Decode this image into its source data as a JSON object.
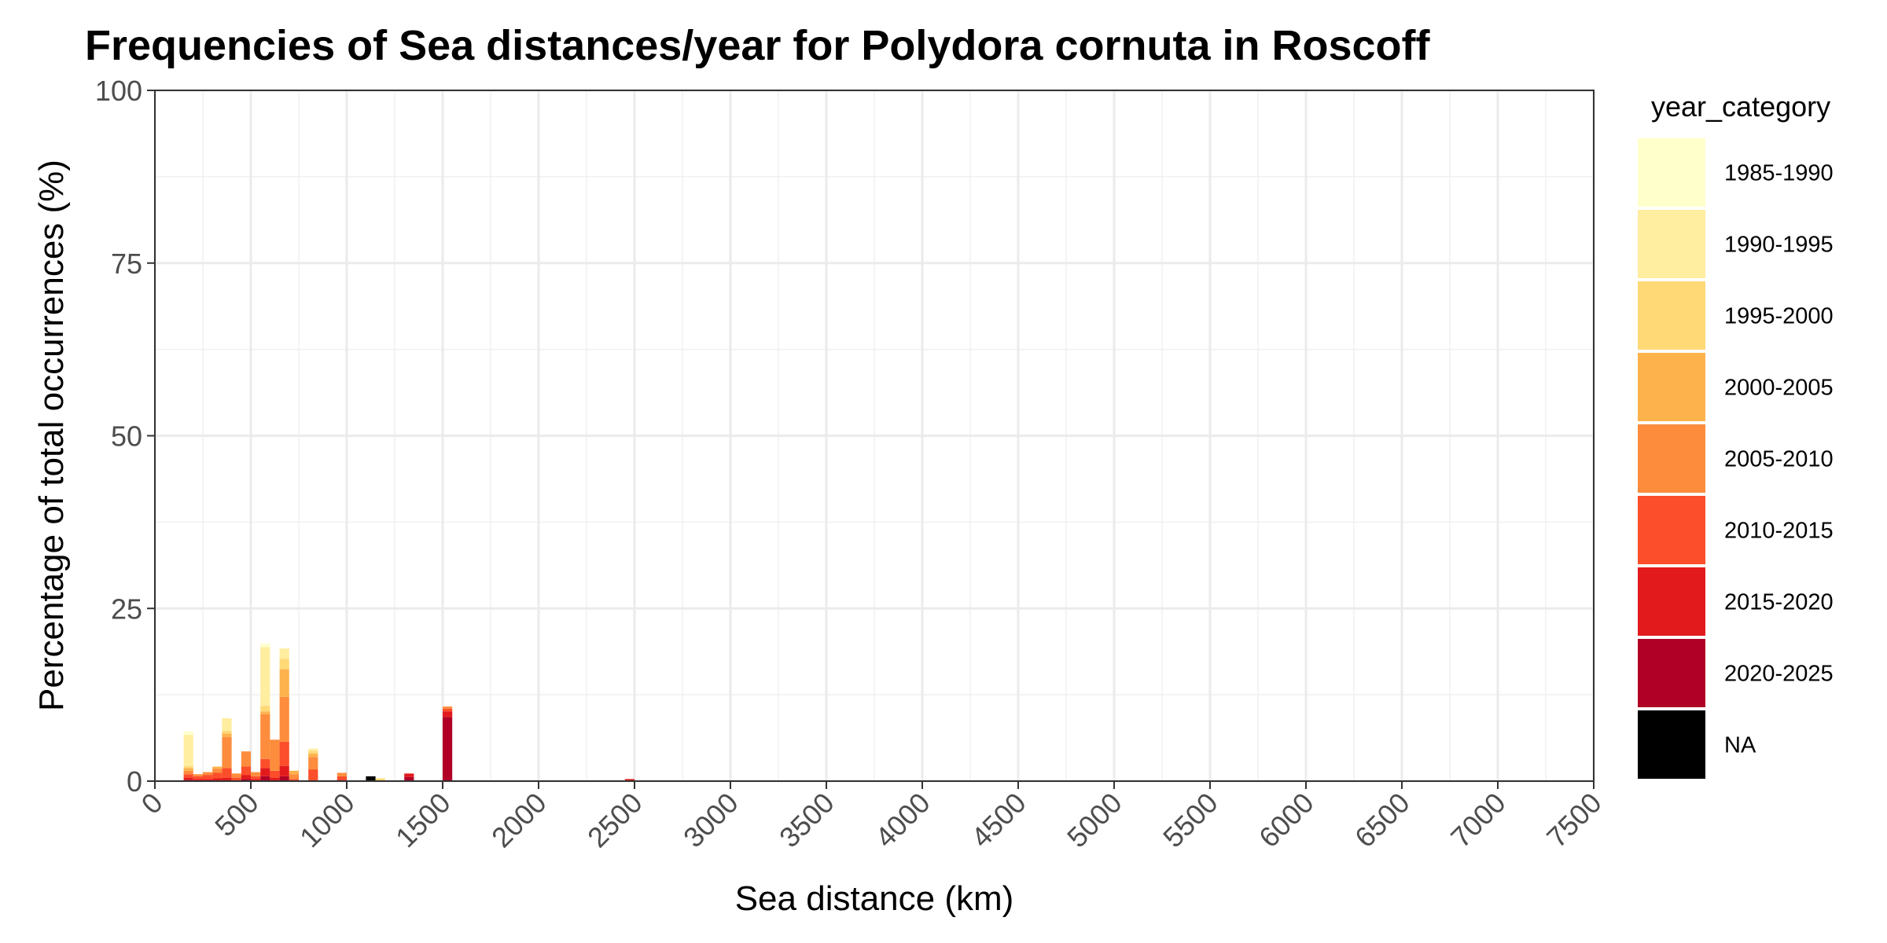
{
  "chart_data": {
    "type": "bar",
    "stacked": true,
    "title": "Frequencies of Sea distances/year for Polydora cornuta in Roscoff",
    "xlabel": "Sea distance (km)",
    "ylabel": "Percentage of total occurrences (%)",
    "xlim": [
      0,
      7500
    ],
    "ylim": [
      0,
      100
    ],
    "x_ticks": [
      "0",
      "500",
      "1000",
      "1500",
      "2000",
      "2500",
      "3000",
      "3500",
      "4000",
      "4500",
      "5000",
      "5500",
      "6000",
      "6500",
      "7000",
      "7500"
    ],
    "y_ticks": [
      "0",
      "25",
      "50",
      "75",
      "100"
    ],
    "grid": true,
    "bin_width": 50,
    "legend": {
      "title": "year_category",
      "position": "right",
      "entries": [
        "1985-1990",
        "1990-1995",
        "1995-2000",
        "2000-2005",
        "2005-2010",
        "2010-2015",
        "2015-2020",
        "2020-2025",
        "NA"
      ]
    },
    "colors": {
      "1985-1990": "#FFFFCC",
      "1990-1995": "#FFEDA0",
      "1995-2000": "#FED976",
      "2000-2005": "#FEB24C",
      "2005-2010": "#FD8D3C",
      "2010-2015": "#FC4E2A",
      "2015-2020": "#E31A1C",
      "2020-2025": "#B10026",
      "NA": "#000000"
    },
    "series_order_bottom_to_top": [
      "NA",
      "2020-2025",
      "2015-2020",
      "2010-2015",
      "2005-2010",
      "2000-2005",
      "1995-2000",
      "1990-1995",
      "1985-1990"
    ],
    "bins": [
      {
        "x": 175,
        "values": {
          "1985-1990": 0.5,
          "1990-1995": 4.5,
          "1995-2000": 0.3,
          "2000-2005": 0.4,
          "2005-2010": 0.5,
          "2010-2015": 0.5,
          "2015-2020": 0.3,
          "2020-2025": 0.2
        }
      },
      {
        "x": 225,
        "values": {
          "2005-2010": 0.3,
          "2010-2015": 0.4,
          "2015-2020": 0.3
        }
      },
      {
        "x": 275,
        "values": {
          "2005-2010": 0.4,
          "2010-2015": 0.6,
          "2015-2020": 0.3
        }
      },
      {
        "x": 325,
        "values": {
          "2000-2005": 0.3,
          "2005-2010": 0.6,
          "2010-2015": 0.8,
          "2015-2020": 0.4
        }
      },
      {
        "x": 375,
        "values": {
          "1990-1995": 1.8,
          "1995-2000": 0.4,
          "2000-2005": 0.5,
          "2005-2010": 4.5,
          "2010-2015": 1.4,
          "2015-2020": 0.5
        }
      },
      {
        "x": 425,
        "values": {
          "2005-2010": 0.6,
          "2010-2015": 0.5
        }
      },
      {
        "x": 475,
        "values": {
          "2005-2010": 2.2,
          "2010-2015": 1.2,
          "2015-2020": 0.6,
          "2020-2025": 0.3
        }
      },
      {
        "x": 525,
        "values": {
          "2005-2010": 0.6,
          "2010-2015": 0.4,
          "2015-2020": 0.3
        }
      },
      {
        "x": 575,
        "values": {
          "1985-1990": 0.5,
          "1990-1995": 8.5,
          "1995-2000": 0.8,
          "2000-2005": 0.4,
          "2005-2010": 6.5,
          "2010-2015": 1.3,
          "2015-2020": 1.2,
          "2020-2025": 0.7
        }
      },
      {
        "x": 625,
        "values": {
          "2005-2010": 4.5,
          "2010-2015": 1.0,
          "2015-2020": 0.5
        }
      },
      {
        "x": 675,
        "values": {
          "1990-1995": 1.5,
          "1995-2000": 1.5,
          "2000-2005": 4.0,
          "2005-2010": 6.5,
          "2010-2015": 3.5,
          "2015-2020": 1.5,
          "2020-2025": 0.7
        }
      },
      {
        "x": 725,
        "values": {
          "2000-2005": 0.5,
          "2005-2010": 0.7,
          "2010-2015": 0.3
        }
      },
      {
        "x": 825,
        "values": {
          "1990-1995": 0.3,
          "1995-2000": 0.4,
          "2000-2005": 0.5,
          "2005-2010": 1.8,
          "2010-2015": 1.7
        }
      },
      {
        "x": 975,
        "values": {
          "2005-2010": 0.5,
          "2010-2015": 0.5,
          "2015-2020": 0.2
        }
      },
      {
        "x": 1125,
        "values": {
          "NA": 0.7
        }
      },
      {
        "x": 1175,
        "values": {
          "1995-2000": 0.4
        }
      },
      {
        "x": 1325,
        "values": {
          "2015-2020": 0.5,
          "2020-2025": 0.6
        }
      },
      {
        "x": 1525,
        "values": {
          "2005-2010": 0.3,
          "2010-2015": 0.4,
          "2015-2020": 0.8,
          "2020-2025": 9.3
        }
      },
      {
        "x": 2475,
        "values": {
          "2015-2020": 0.3
        }
      }
    ]
  }
}
